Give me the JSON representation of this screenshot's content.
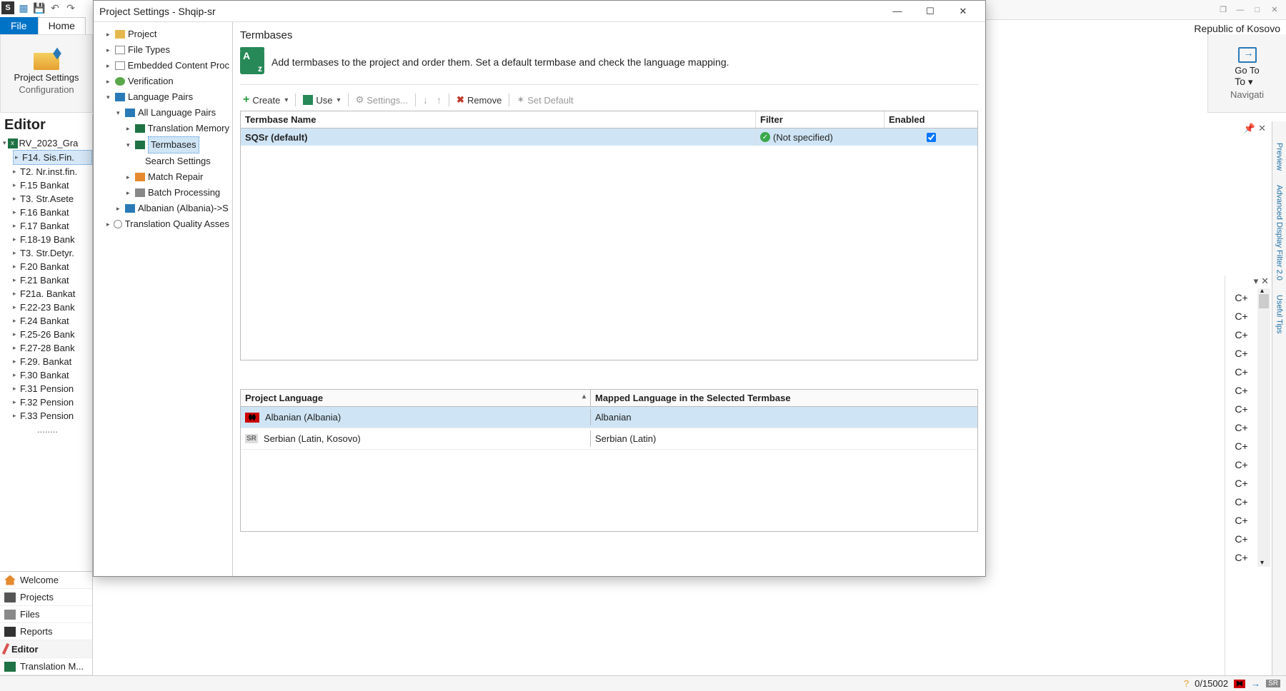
{
  "bg": {
    "kosovo": "Republic of Kosovo",
    "ribbon": {
      "file": "File",
      "home": "Home",
      "proj_settings": "Project Settings",
      "configuration": "Configuration",
      "goto": "Go To",
      "goto_caret": "▾",
      "navigati": "Navigati"
    }
  },
  "editor": {
    "title": "Editor",
    "root": "RV_2023_Gra",
    "files": [
      "F14. Sis.Fin.",
      "T2. Nr.inst.fin.",
      "F.15 Bankat",
      "T3. Str.Asete",
      "F.16 Bankat",
      "F.17 Bankat",
      "F.18-19 Bank",
      "T3. Str.Detyr.",
      "F.20 Bankat",
      "F.21 Bankat",
      "F21a. Bankat",
      "F.22-23 Bank",
      "F.24 Bankat",
      "F.25-26 Bank",
      "F.27-28 Bank",
      "F.29. Bankat",
      "F.30 Bankat",
      "F.31 Pension",
      "F.32 Pension",
      "F.33 Pension"
    ],
    "selected_index": 0
  },
  "nav": {
    "items": [
      "Welcome",
      "Projects",
      "Files",
      "Reports",
      "Editor",
      "Translation M..."
    ],
    "active_index": 4
  },
  "dialog": {
    "title": "Project Settings - Shqip-sr",
    "tree": {
      "project": "Project",
      "file_types": "File Types",
      "embedded": "Embedded Content Proc",
      "verification": "Verification",
      "language_pairs": "Language Pairs",
      "all_lang_pairs": "All Language Pairs",
      "tm": "Translation Memory",
      "termbases": "Termbases",
      "search_settings": "Search Settings",
      "match_repair": "Match Repair",
      "batch": "Batch Processing",
      "albanian": "Albanian (Albania)->S",
      "tqa": "Translation Quality Asses"
    },
    "main": {
      "title": "Termbases",
      "desc": "Add termbases to the project and order them. Set a default termbase and check the language mapping.",
      "az_label": "z"
    },
    "toolbar": {
      "create": "Create",
      "use": "Use",
      "settings": "Settings...",
      "remove": "Remove",
      "set_default": "Set Default"
    },
    "grid": {
      "cols": {
        "name": "Termbase Name",
        "filter": "Filter",
        "enabled": "Enabled"
      },
      "rows": [
        {
          "name": "SQSr (default)",
          "filter": "(Not specified)",
          "enabled": true
        }
      ]
    },
    "langs": {
      "cols": {
        "project_lang": "Project Language",
        "mapped": "Mapped Language in the Selected Termbase"
      },
      "rows": [
        {
          "flag": "sq",
          "project": "Albanian (Albania)",
          "mapped": "Albanian",
          "selected": true
        },
        {
          "flag": "sr",
          "project": "Serbian (Latin, Kosovo)",
          "mapped": "Serbian (Latin)",
          "selected": false
        }
      ]
    }
  },
  "right": {
    "vtabs": [
      "Preview",
      "Advanced Display Filter 2.0",
      "Useful Tips"
    ]
  },
  "cplus": {
    "rows": [
      "C+",
      "C+",
      "C+",
      "C+",
      "C+",
      "C+",
      "C+",
      "C+",
      "C+",
      "C+",
      "C+",
      "C+",
      "C+",
      "C+",
      "C+"
    ]
  },
  "status": {
    "progress": "0/15002",
    "target": "SR"
  }
}
